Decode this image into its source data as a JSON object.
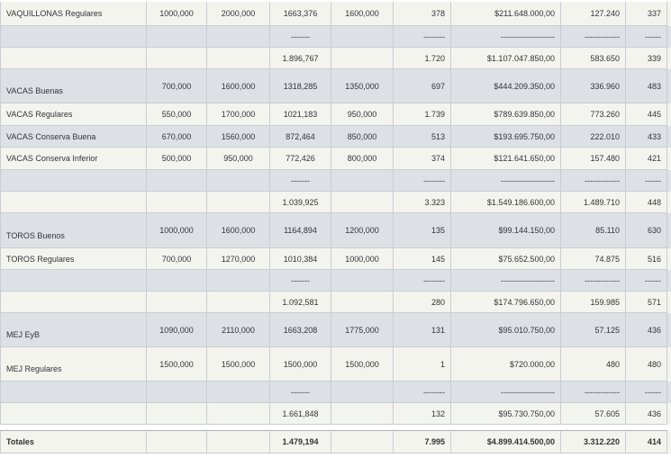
{
  "rows": [
    {
      "bg": "light",
      "label": "VAQUILLONAS Regulares",
      "label_pos": "middle",
      "min": "1000,000",
      "max": "2000,000",
      "prom": "1663,376",
      "base": "1600,000",
      "cab": "378",
      "total": "$211.648.000,00",
      "kg": "127.240",
      "pp": "337"
    },
    {
      "bg": "blue",
      "sep": true
    },
    {
      "bg": "light",
      "prom": "1.896,767",
      "cab": "1.720",
      "total": "$1.107.047.850,00",
      "kg": "583.650",
      "pp": "339"
    },
    {
      "bg": "blue",
      "label": "VACAS Buenas",
      "label_pos": "bottom",
      "min": "700,000",
      "max": "1600,000",
      "prom": "1318,285",
      "base": "1350,000",
      "cab": "697",
      "total": "$444.209.350,00",
      "kg": "336.960",
      "pp": "483"
    },
    {
      "bg": "light",
      "label": "VACAS Regulares",
      "label_pos": "middle",
      "min": "550,000",
      "max": "1700,000",
      "prom": "1021,183",
      "base": "950,000",
      "cab": "1.739",
      "total": "$789.639.850,00",
      "kg": "773.260",
      "pp": "445"
    },
    {
      "bg": "blue",
      "label": "VACAS Conserva Buena",
      "label_pos": "middle",
      "min": "670,000",
      "max": "1560,000",
      "prom": "872,464",
      "base": "850,000",
      "cab": "513",
      "total": "$193.695.750,00",
      "kg": "222.010",
      "pp": "433"
    },
    {
      "bg": "light",
      "label": "VACAS Conserva Inferior",
      "label_pos": "middle",
      "min": "500,000",
      "max": "950,000",
      "prom": "772,426",
      "base": "800,000",
      "cab": "374",
      "total": "$121.641.650,00",
      "kg": "157.480",
      "pp": "421"
    },
    {
      "bg": "blue",
      "sep": true
    },
    {
      "bg": "light",
      "prom": "1.039,925",
      "cab": "3.323",
      "total": "$1.549.186.600,00",
      "kg": "1.489.710",
      "pp": "448"
    },
    {
      "bg": "blue",
      "label": "TOROS Buenos",
      "label_pos": "bottom",
      "min": "1000,000",
      "max": "1600,000",
      "prom": "1164,894",
      "base": "1200,000",
      "cab": "135",
      "total": "$99.144.150,00",
      "kg": "85.110",
      "pp": "630"
    },
    {
      "bg": "light",
      "label": "TOROS Regulares",
      "label_pos": "middle",
      "min": "700,000",
      "max": "1270,000",
      "prom": "1010,384",
      "base": "1000,000",
      "cab": "145",
      "total": "$75.652.500,00",
      "kg": "74.875",
      "pp": "516"
    },
    {
      "bg": "blue",
      "sep": true
    },
    {
      "bg": "light",
      "prom": "1.092,581",
      "cab": "280",
      "total": "$174.796.650,00",
      "kg": "159.985",
      "pp": "571"
    },
    {
      "bg": "blue",
      "label": "MEJ EyB",
      "label_pos": "bottom",
      "min": "1090,000",
      "max": "2110,000",
      "prom": "1663,208",
      "base": "1775,000",
      "cab": "131",
      "total": "$95.010.750,00",
      "kg": "57.125",
      "pp": "436"
    },
    {
      "bg": "light",
      "label": "MEJ Regulares",
      "label_pos": "bottom",
      "min": "1500,000",
      "max": "1500,000",
      "prom": "1500,000",
      "base": "1500,000",
      "cab": "1",
      "total": "$720.000,00",
      "kg": "480",
      "pp": "480"
    },
    {
      "bg": "blue",
      "sep": true
    },
    {
      "bg": "light",
      "prom": "1.661,848",
      "cab": "132",
      "total": "$95.730.750,00",
      "kg": "57.605",
      "pp": "436"
    }
  ],
  "separators": {
    "prom": "-------",
    "cab": "--------",
    "total": "--------------------",
    "kg": "-------------",
    "pp": "------"
  },
  "totals": {
    "label": "Totales",
    "prom": "1.479,194",
    "cab": "7.995",
    "total": "$4.899.414.500,00",
    "kg": "3.312.220",
    "pp": "414"
  }
}
